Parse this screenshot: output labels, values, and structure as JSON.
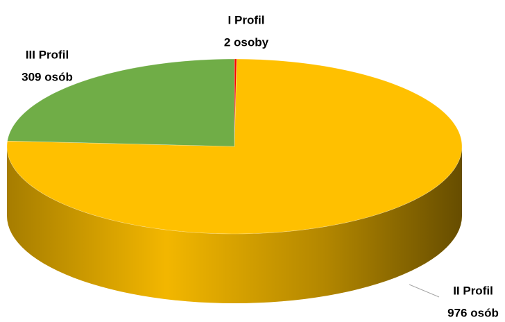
{
  "chart_data": {
    "type": "pie",
    "categories": [
      "I Profil",
      "II Profil",
      "III Profil"
    ],
    "values": [
      2,
      976,
      309
    ],
    "value_labels": [
      "2 osoby",
      "976 osób",
      "309 osób"
    ],
    "colors": [
      "#ff0000",
      "#ffc000",
      "#70ad47"
    ]
  }
}
